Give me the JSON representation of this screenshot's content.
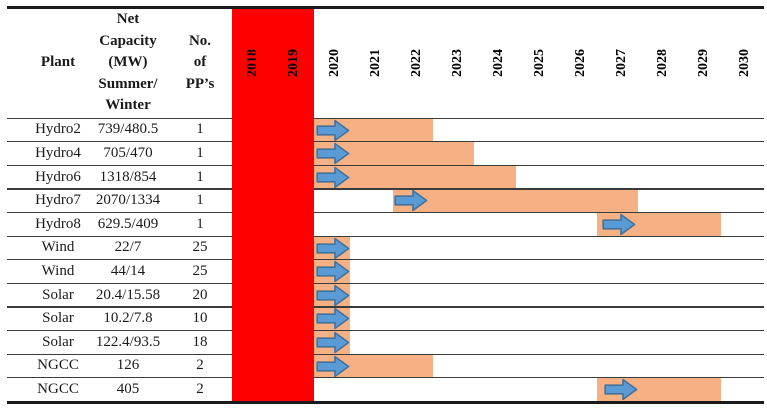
{
  "figure": {
    "kind": "power-plant-commissioning-gantt-table"
  },
  "header": {
    "plant": "Plant",
    "capacity": "Net\nCapacity\n(MW)\nSummer/\nWinter",
    "pps": "No.\nof\nPP’s"
  },
  "colors": {
    "blocked_region": "#FF0000",
    "bar_fill": "#F5B183",
    "arrow_fill": "#5B9BD5",
    "arrow_stroke": "#41719C",
    "grid_line": "#3b3b3b",
    "frame_line": "#1a1a1a",
    "text": "#1a1a1a"
  },
  "chart_data": {
    "type": "bar",
    "subtype": "gantt",
    "title": "",
    "xlabel": "",
    "ylabel": "",
    "legend": "none",
    "grid": "horizontal-only",
    "x_axis_years": [
      "2020",
      "2021",
      "2022",
      "2023",
      "2024",
      "2025",
      "2026",
      "2027",
      "2028",
      "2029",
      "2030"
    ],
    "blocked_years": [
      "2018",
      "2019"
    ],
    "axis_range": [
      2018,
      2031
    ],
    "columns": [
      "Plant",
      "Net Capacity (MW) Summer/Winter",
      "No. of PP's"
    ],
    "rows": [
      {
        "plant": "Hydro2",
        "net_capacity_mw": "739/480.5",
        "num_pps": "1",
        "bar": [
          2020.0,
          2022.9
        ],
        "arrow": 2020.08
      },
      {
        "plant": "Hydro4",
        "net_capacity_mw": "705/470",
        "num_pps": "1",
        "bar": [
          2020.0,
          2023.9
        ],
        "arrow": 2020.08
      },
      {
        "plant": "Hydro6",
        "net_capacity_mw": "1318/854",
        "num_pps": "1",
        "bar": [
          2020.0,
          2024.92
        ],
        "arrow": 2020.08
      },
      {
        "plant": "Hydro7",
        "net_capacity_mw": "2070/1334",
        "num_pps": "1",
        "bar": [
          2021.93,
          2027.9
        ],
        "arrow": 2021.97
      },
      {
        "plant": "Hydro8",
        "net_capacity_mw": "629.5/409",
        "num_pps": "1",
        "bar": [
          2026.9,
          2029.93
        ],
        "arrow": 2027.05
      },
      {
        "plant": "Wind",
        "net_capacity_mw": "22/7",
        "num_pps": "25",
        "bar": [
          2020.0,
          2020.88
        ],
        "arrow": 2020.08
      },
      {
        "plant": "Wind",
        "net_capacity_mw": "44/14",
        "num_pps": "25",
        "bar": [
          2020.0,
          2020.88
        ],
        "arrow": 2020.08
      },
      {
        "plant": "Solar",
        "net_capacity_mw": "20.4/15.58",
        "num_pps": "20",
        "bar": [
          2020.0,
          2020.88
        ],
        "arrow": 2020.08
      },
      {
        "plant": "Solar",
        "net_capacity_mw": "10.2/7.8",
        "num_pps": "10",
        "bar": [
          2020.0,
          2020.88
        ],
        "arrow": 2020.08
      },
      {
        "plant": "Solar",
        "net_capacity_mw": "122.4/93.5",
        "num_pps": "18",
        "bar": [
          2020.0,
          2020.88
        ],
        "arrow": 2020.08
      },
      {
        "plant": "NGCC",
        "net_capacity_mw": "126",
        "num_pps": "2",
        "bar": [
          2020.0,
          2022.9
        ],
        "arrow": 2020.08
      },
      {
        "plant": "NGCC",
        "net_capacity_mw": "405",
        "num_pps": "2",
        "bar": [
          2026.9,
          2029.93
        ],
        "arrow": 2027.1
      }
    ]
  }
}
